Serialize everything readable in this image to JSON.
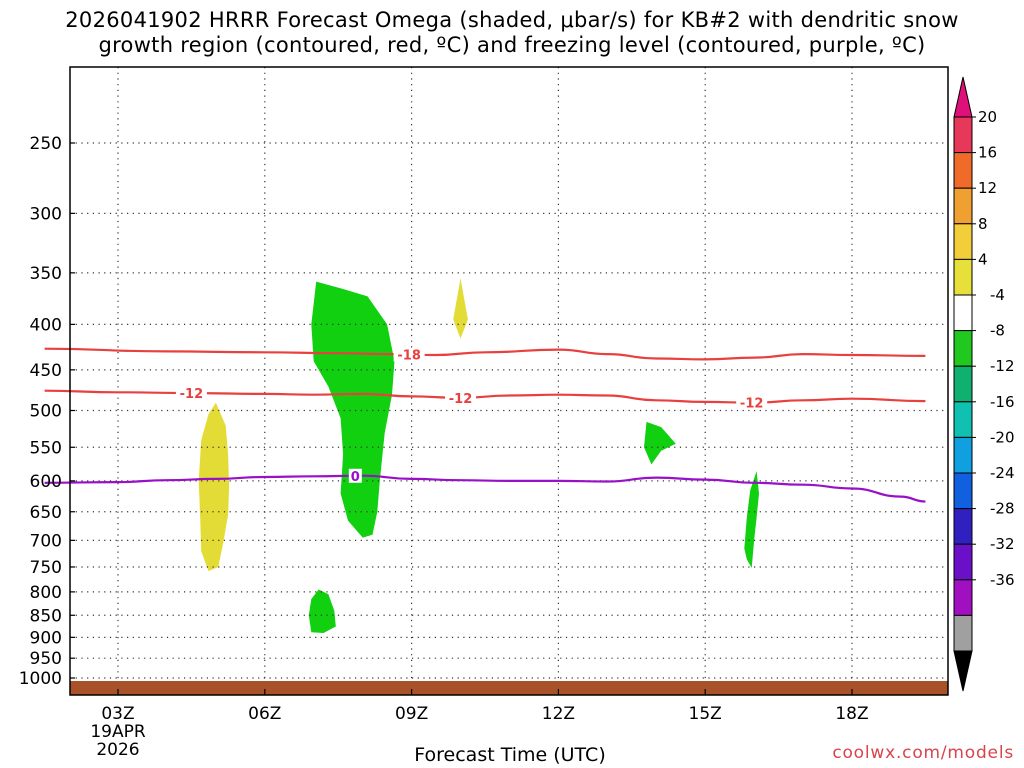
{
  "header": {
    "title_line1": "2026041902 HRRR Forecast Omega (shaded, μbar/s) for KB#2 with dendritic snow",
    "title_line2": "growth region (contoured, red, ºC) and freezing level (contoured, purple, ºC)"
  },
  "footer": {
    "xlabel": "Forecast Time (UTC)",
    "credit": "coolwx.com/models"
  },
  "chart_data": {
    "type": "time-pressure cross-section",
    "x_tick_labels": [
      "03Z",
      "06Z",
      "09Z",
      "12Z",
      "15Z",
      "18Z"
    ],
    "x_ticks_hours": [
      3,
      6,
      9,
      12,
      15,
      18
    ],
    "x_range_hours": [
      1.5,
      19.5
    ],
    "x_first_tick_date": [
      "19APR",
      "2026"
    ],
    "y_tick_labels": [
      "250",
      "300",
      "350",
      "400",
      "450",
      "500",
      "550",
      "600",
      "650",
      "700",
      "750",
      "800",
      "850",
      "900",
      "950",
      "1000"
    ],
    "y_ticks_hPa": [
      250,
      300,
      350,
      400,
      450,
      500,
      550,
      600,
      650,
      700,
      750,
      800,
      850,
      900,
      950,
      1000
    ],
    "y_axis": "pressure (hPa), log scale, inverted",
    "grid": "dotted",
    "ground_color": "#a9522a",
    "colorbar": {
      "labels": [
        "20",
        "16",
        "12",
        "8",
        "4",
        "-4",
        "-8",
        "-12",
        "-16",
        "-20",
        "-24",
        "-28",
        "-32",
        "-36"
      ],
      "colors": [
        "#e8385a",
        "#f06a2a",
        "#f0a030",
        "#f2cf3a",
        "#e8e03a",
        "#ffffff",
        "#20c820",
        "#10b070",
        "#10c0b0",
        "#10a0e0",
        "#1060e0",
        "#3020c0",
        "#6a10c8",
        "#a010c0",
        "#a0a0a0"
      ],
      "top_triangle_color": "#e0107a",
      "bottom_triangle_color": "#000000"
    },
    "contours": [
      {
        "label": "-18",
        "color": "#e8403e",
        "label_time": 8.95,
        "points": [
          [
            1.5,
            426
          ],
          [
            4,
            429
          ],
          [
            6,
            430
          ],
          [
            7.5,
            431
          ],
          [
            8.5,
            432
          ],
          [
            9.5,
            433
          ],
          [
            10.5,
            430
          ],
          [
            12,
            427
          ],
          [
            13,
            432
          ],
          [
            14,
            437
          ],
          [
            15,
            438
          ],
          [
            16,
            436
          ],
          [
            17,
            432
          ],
          [
            18,
            433
          ],
          [
            19.5,
            434
          ]
        ]
      },
      {
        "label": "-12",
        "color": "#e8403e",
        "label_times": [
          4.5,
          10.0,
          15.95
        ],
        "points": [
          [
            1.5,
            475
          ],
          [
            3,
            477
          ],
          [
            4.5,
            478
          ],
          [
            6,
            479
          ],
          [
            7,
            480
          ],
          [
            8,
            479
          ],
          [
            9,
            482
          ],
          [
            10,
            484
          ],
          [
            11,
            481
          ],
          [
            12,
            480
          ],
          [
            13,
            481
          ],
          [
            14,
            487
          ],
          [
            15,
            489
          ],
          [
            16,
            490
          ],
          [
            17,
            487
          ],
          [
            18,
            485
          ],
          [
            19.5,
            488
          ]
        ]
      },
      {
        "label": "0",
        "color": "#9810c8",
        "label_time": 7.85,
        "points": [
          [
            1.5,
            603
          ],
          [
            3,
            602
          ],
          [
            4,
            599
          ],
          [
            5,
            597
          ],
          [
            6,
            594
          ],
          [
            7,
            593
          ],
          [
            8,
            592
          ],
          [
            9,
            597
          ],
          [
            10,
            599
          ],
          [
            11,
            600
          ],
          [
            12,
            600
          ],
          [
            13,
            601
          ],
          [
            14,
            595
          ],
          [
            15,
            598
          ],
          [
            16,
            603
          ],
          [
            17,
            606
          ],
          [
            18,
            612
          ],
          [
            19,
            625
          ],
          [
            19.5,
            633
          ]
        ]
      }
    ],
    "omega_regions": [
      {
        "value_range": [
          4,
          8
        ],
        "color": "#e4dc36",
        "outline": [
          [
            5,
            490
          ],
          [
            5.2,
            520
          ],
          [
            5.25,
            560
          ],
          [
            5.27,
            610
          ],
          [
            5.25,
            655
          ],
          [
            5.15,
            705
          ],
          [
            5.05,
            750
          ],
          [
            4.85,
            758
          ],
          [
            4.7,
            720
          ],
          [
            4.68,
            660
          ],
          [
            4.65,
            600
          ],
          [
            4.7,
            540
          ],
          [
            4.85,
            505
          ]
        ]
      },
      {
        "value_range": [
          4,
          8
        ],
        "color": "#e4dc36",
        "outline": [
          [
            10,
            355
          ],
          [
            10.15,
            395
          ],
          [
            10,
            415
          ],
          [
            9.85,
            395
          ]
        ]
      },
      {
        "value_range": [
          -8,
          -4
        ],
        "color": "#10d010",
        "outline": [
          [
            7.05,
            358
          ],
          [
            7.6,
            365
          ],
          [
            8.1,
            372
          ],
          [
            8.5,
            400
          ],
          [
            8.65,
            440
          ],
          [
            8.6,
            480
          ],
          [
            8.45,
            530
          ],
          [
            8.35,
            600
          ],
          [
            8.3,
            650
          ],
          [
            8.2,
            690
          ],
          [
            8.0,
            695
          ],
          [
            7.7,
            665
          ],
          [
            7.55,
            620
          ],
          [
            7.6,
            560
          ],
          [
            7.55,
            510
          ],
          [
            7.3,
            470
          ],
          [
            7.0,
            440
          ],
          [
            6.95,
            400
          ]
        ]
      },
      {
        "value_range": [
          -8,
          -4
        ],
        "color": "#10d010",
        "outline": [
          [
            7.1,
            795
          ],
          [
            7.3,
            805
          ],
          [
            7.42,
            840
          ],
          [
            7.45,
            875
          ],
          [
            7.2,
            890
          ],
          [
            6.95,
            888
          ],
          [
            6.9,
            850
          ],
          [
            6.95,
            815
          ]
        ]
      },
      {
        "value_range": [
          -8,
          -4
        ],
        "color": "#10d010",
        "outline": [
          [
            13.8,
            515
          ],
          [
            14.1,
            522
          ],
          [
            14.4,
            545
          ],
          [
            14.1,
            555
          ],
          [
            13.9,
            575
          ],
          [
            13.75,
            550
          ]
        ]
      },
      {
        "value_range": [
          -8,
          -4
        ],
        "color": "#10d010",
        "outline": [
          [
            16.05,
            585
          ],
          [
            16.1,
            620
          ],
          [
            16.05,
            660
          ],
          [
            16.0,
            700
          ],
          [
            15.95,
            752
          ],
          [
            15.85,
            735
          ],
          [
            15.8,
            715
          ],
          [
            15.85,
            660
          ],
          [
            15.92,
            615
          ]
        ]
      }
    ]
  }
}
